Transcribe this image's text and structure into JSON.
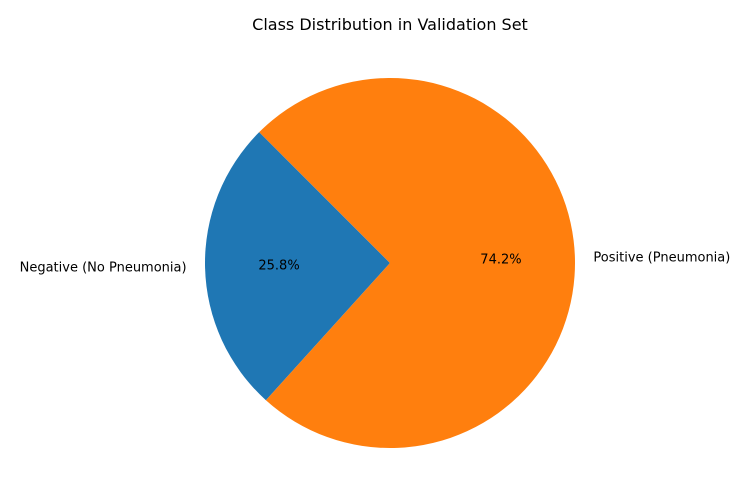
{
  "chart_data": {
    "type": "pie",
    "title": "Class Distribution in Validation Set",
    "slices": [
      {
        "label": "Negative (No Pneumonia)",
        "value": 25.8,
        "pct_label": "25.8%",
        "color": "#1f77b4"
      },
      {
        "label": "Positive (Pneumonia)",
        "value": 74.2,
        "pct_label": "74.2%",
        "color": "#ff7f0e"
      }
    ],
    "start_angle_deg": 135,
    "direction": "counterclockwise"
  }
}
